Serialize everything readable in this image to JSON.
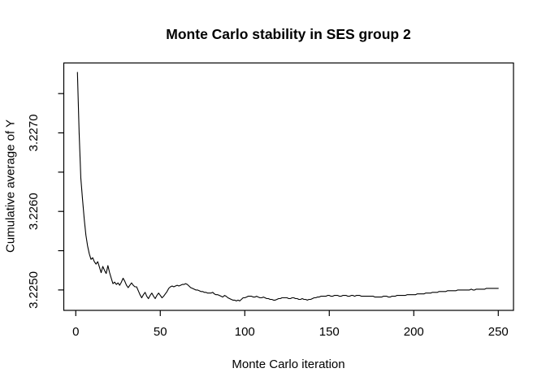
{
  "colors": {
    "line": "#000000",
    "axis": "#000000",
    "text": "#000000",
    "background": "#ffffff"
  },
  "chart_data": {
    "type": "line",
    "title": "Monte Carlo stability in SES group 2",
    "xlabel": "Monte Carlo iteration",
    "ylabel": "Cumulative average of Y",
    "legend": "none",
    "grid": false,
    "x_range": [
      1,
      250
    ],
    "x_description": "Monte Carlo iteration index; one value per iteration from 1 to 250",
    "xlim": [
      -7.1,
      259.0
    ],
    "ylim": [
      3.22474,
      3.22789
    ],
    "x_ticks": [
      {
        "value": 0,
        "label": "0"
      },
      {
        "value": 50,
        "label": "50"
      },
      {
        "value": 100,
        "label": "100"
      },
      {
        "value": 150,
        "label": "150"
      },
      {
        "value": 200,
        "label": "200"
      },
      {
        "value": 250,
        "label": "250"
      }
    ],
    "y_ticks": [
      {
        "value": 3.225,
        "label": "3.2250"
      },
      {
        "value": 3.2255,
        "label": ""
      },
      {
        "value": 3.226,
        "label": "3.2260"
      },
      {
        "value": 3.2265,
        "label": ""
      },
      {
        "value": 3.227,
        "label": "3.2270"
      },
      {
        "value": 3.2275,
        "label": ""
      }
    ],
    "values": [
      3.22777,
      3.227,
      3.22642,
      3.22615,
      3.2259,
      3.2257,
      3.22556,
      3.22546,
      3.22539,
      3.22541,
      3.22536,
      3.22533,
      3.22536,
      3.22529,
      3.22522,
      3.2253,
      3.22525,
      3.22521,
      3.22531,
      3.22522,
      3.22515,
      3.22508,
      3.2251,
      3.22507,
      3.22509,
      3.22506,
      3.2251,
      3.22515,
      3.22511,
      3.22506,
      3.22503,
      3.22506,
      3.22509,
      3.22506,
      3.22504,
      3.22504,
      3.22499,
      3.22494,
      3.2249,
      3.22494,
      3.22497,
      3.22492,
      3.22489,
      3.22493,
      3.22496,
      3.22492,
      3.22489,
      3.22493,
      3.22496,
      3.22493,
      3.2249,
      3.22492,
      3.22495,
      3.22498,
      3.22502,
      3.22504,
      3.22505,
      3.22504,
      3.22505,
      3.22506,
      3.22505,
      3.22506,
      3.22507,
      3.22507,
      3.22508,
      3.22507,
      3.22505,
      3.22503,
      3.22502,
      3.22501,
      3.225,
      3.225,
      3.22499,
      3.22498,
      3.22498,
      3.22497,
      3.22497,
      3.22496,
      3.22496,
      3.22496,
      3.22497,
      3.22495,
      3.22494,
      3.22494,
      3.22493,
      3.22492,
      3.22491,
      3.22493,
      3.22492,
      3.2249,
      3.22489,
      3.22488,
      3.22487,
      3.22487,
      3.22486,
      3.22487,
      3.22486,
      3.22488,
      3.2249,
      3.2249,
      3.22491,
      3.22492,
      3.22492,
      3.22492,
      3.22491,
      3.22491,
      3.22492,
      3.22491,
      3.2249,
      3.2249,
      3.22491,
      3.2249,
      3.22489,
      3.22489,
      3.22488,
      3.22488,
      3.22487,
      3.22487,
      3.22488,
      3.22489,
      3.22489,
      3.2249,
      3.2249,
      3.2249,
      3.2249,
      3.22489,
      3.22489,
      3.2249,
      3.2249,
      3.22489,
      3.22489,
      3.22488,
      3.22488,
      3.22489,
      3.22488,
      3.22488,
      3.22487,
      3.22488,
      3.22488,
      3.22489,
      3.2249,
      3.2249,
      3.22491,
      3.22491,
      3.22492,
      3.22492,
      3.22492,
      3.22492,
      3.22493,
      3.22493,
      3.22492,
      3.22492,
      3.22493,
      3.22493,
      3.22493,
      3.22492,
      3.22492,
      3.22493,
      3.22493,
      3.22493,
      3.22492,
      3.22492,
      3.22493,
      3.22493,
      3.22492,
      3.22493,
      3.22493,
      3.22493,
      3.22492,
      3.22492,
      3.22492,
      3.22492,
      3.22492,
      3.22492,
      3.22492,
      3.22492,
      3.22491,
      3.22491,
      3.22491,
      3.22491,
      3.22491,
      3.22492,
      3.22492,
      3.22492,
      3.22491,
      3.22491,
      3.22492,
      3.22492,
      3.22492,
      3.22493,
      3.22493,
      3.22493,
      3.22493,
      3.22493,
      3.22493,
      3.22494,
      3.22494,
      3.22494,
      3.22494,
      3.22494,
      3.22494,
      3.22495,
      3.22495,
      3.22495,
      3.22495,
      3.22495,
      3.22496,
      3.22496,
      3.22496,
      3.22496,
      3.22497,
      3.22497,
      3.22497,
      3.22497,
      3.22498,
      3.22498,
      3.22498,
      3.22498,
      3.22498,
      3.22499,
      3.22499,
      3.22499,
      3.22499,
      3.22499,
      3.22499,
      3.225,
      3.225,
      3.225,
      3.225,
      3.225,
      3.225,
      3.225,
      3.225,
      3.22501,
      3.225,
      3.225,
      3.22501,
      3.22501,
      3.22501,
      3.22501,
      3.22501,
      3.22501,
      3.22502,
      3.22502,
      3.22502,
      3.22502,
      3.22502,
      3.22502,
      3.22502,
      3.22502
    ]
  }
}
